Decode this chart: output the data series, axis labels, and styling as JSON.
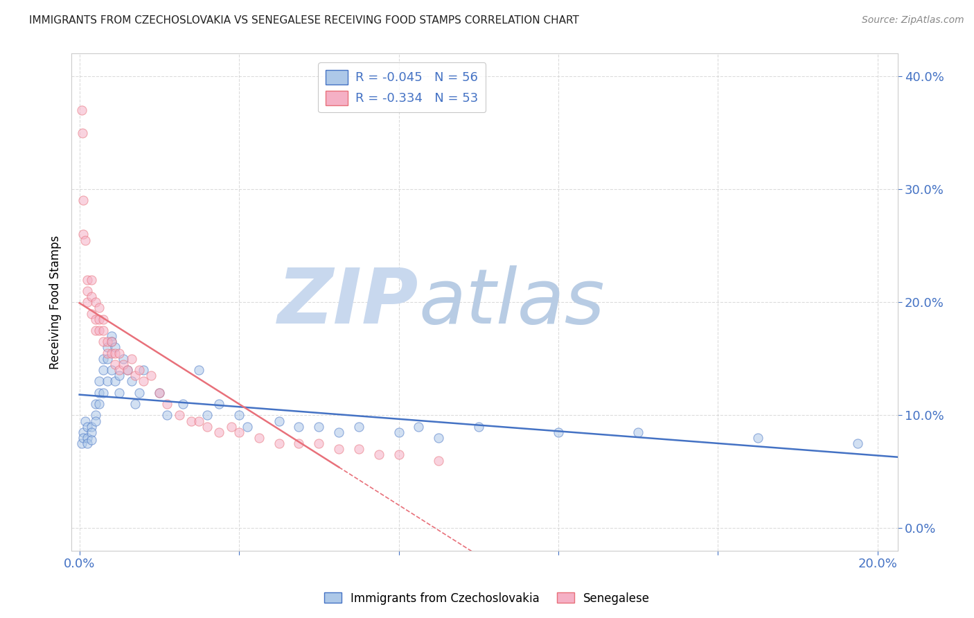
{
  "title": "IMMIGRANTS FROM CZECHOSLOVAKIA VS SENEGALESE RECEIVING FOOD STAMPS CORRELATION CHART",
  "source": "Source: ZipAtlas.com",
  "ylabel": "Receiving Food Stamps",
  "blue_color": "#adc8e8",
  "pink_color": "#f5b0c5",
  "blue_line_color": "#4472c4",
  "pink_line_color": "#e8707a",
  "watermark_zip": "ZIP",
  "watermark_atlas": "atlas",
  "watermark_color_zip": "#c5d8ec",
  "watermark_color_atlas": "#b8cfe8",
  "legend_r_color": "#4472c4",
  "legend_text_color": "#4472c4",
  "blue_x": [
    0.0005,
    0.001,
    0.001,
    0.0015,
    0.002,
    0.002,
    0.002,
    0.003,
    0.003,
    0.003,
    0.004,
    0.004,
    0.004,
    0.005,
    0.005,
    0.005,
    0.006,
    0.006,
    0.006,
    0.007,
    0.007,
    0.007,
    0.008,
    0.008,
    0.008,
    0.009,
    0.009,
    0.01,
    0.01,
    0.011,
    0.012,
    0.013,
    0.014,
    0.015,
    0.016,
    0.02,
    0.022,
    0.026,
    0.03,
    0.032,
    0.035,
    0.04,
    0.042,
    0.05,
    0.055,
    0.06,
    0.065,
    0.07,
    0.08,
    0.085,
    0.09,
    0.1,
    0.12,
    0.14,
    0.17,
    0.195
  ],
  "blue_y": [
    0.075,
    0.085,
    0.08,
    0.095,
    0.09,
    0.08,
    0.075,
    0.09,
    0.085,
    0.078,
    0.11,
    0.1,
    0.095,
    0.13,
    0.12,
    0.11,
    0.15,
    0.14,
    0.12,
    0.16,
    0.15,
    0.13,
    0.17,
    0.165,
    0.14,
    0.16,
    0.13,
    0.135,
    0.12,
    0.15,
    0.14,
    0.13,
    0.11,
    0.12,
    0.14,
    0.12,
    0.1,
    0.11,
    0.14,
    0.1,
    0.11,
    0.1,
    0.09,
    0.095,
    0.09,
    0.09,
    0.085,
    0.09,
    0.085,
    0.09,
    0.08,
    0.09,
    0.085,
    0.085,
    0.08,
    0.075
  ],
  "pink_x": [
    0.0005,
    0.0008,
    0.001,
    0.001,
    0.0015,
    0.002,
    0.002,
    0.002,
    0.003,
    0.003,
    0.003,
    0.004,
    0.004,
    0.004,
    0.005,
    0.005,
    0.005,
    0.006,
    0.006,
    0.006,
    0.007,
    0.007,
    0.008,
    0.008,
    0.009,
    0.009,
    0.01,
    0.01,
    0.011,
    0.012,
    0.013,
    0.014,
    0.015,
    0.016,
    0.018,
    0.02,
    0.022,
    0.025,
    0.028,
    0.03,
    0.032,
    0.035,
    0.038,
    0.04,
    0.045,
    0.05,
    0.055,
    0.06,
    0.065,
    0.07,
    0.075,
    0.08,
    0.09
  ],
  "pink_y": [
    0.37,
    0.35,
    0.29,
    0.26,
    0.255,
    0.22,
    0.21,
    0.2,
    0.22,
    0.205,
    0.19,
    0.2,
    0.185,
    0.175,
    0.195,
    0.185,
    0.175,
    0.185,
    0.175,
    0.165,
    0.165,
    0.155,
    0.165,
    0.155,
    0.155,
    0.145,
    0.155,
    0.14,
    0.145,
    0.14,
    0.15,
    0.135,
    0.14,
    0.13,
    0.135,
    0.12,
    0.11,
    0.1,
    0.095,
    0.095,
    0.09,
    0.085,
    0.09,
    0.085,
    0.08,
    0.075,
    0.075,
    0.075,
    0.07,
    0.07,
    0.065,
    0.065,
    0.06
  ],
  "xlim": [
    -0.002,
    0.205
  ],
  "ylim": [
    -0.02,
    0.42
  ],
  "yticks": [
    0.0,
    0.1,
    0.2,
    0.3,
    0.4
  ],
  "xtick_positions": [
    0.0,
    0.04,
    0.08,
    0.12,
    0.16,
    0.2
  ],
  "marker_size": 90,
  "marker_alpha": 0.55,
  "marker_lw": 0.8,
  "grid_color": "#cccccc",
  "spine_color": "#cccccc",
  "tick_color": "#4472c4"
}
